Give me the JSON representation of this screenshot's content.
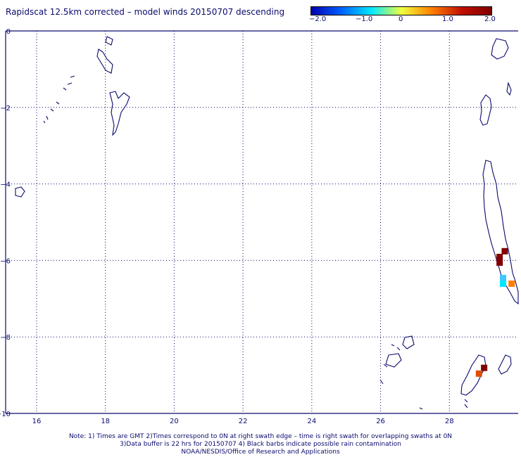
{
  "title": "Rapidscat 12.5km corrected – model winds 20150707 descending",
  "colorbar": {
    "labels": [
      "−2.0",
      "−1.0",
      "0",
      "1.0",
      "2.0"
    ],
    "colors": [
      "#0000b0",
      "#0060ff",
      "#00e8ff",
      "#f0ff40",
      "#ff8000",
      "#c01000",
      "#800000"
    ]
  },
  "map": {
    "x_labels": [
      "16",
      "18",
      "20",
      "22",
      "24",
      "26",
      "28"
    ],
    "y_labels": [
      "0",
      "−2",
      "−4",
      "−6",
      "−8",
      "−10"
    ],
    "coast_color": "#0a0a6e",
    "grid_color": "#0a0a6e"
  },
  "cells": [
    {
      "lon": 29.6,
      "lat": -5.75,
      "color": "#800000"
    },
    {
      "lon": 29.45,
      "lat": -5.9,
      "color": "#800000"
    },
    {
      "lon": 29.45,
      "lat": -6.05,
      "color": "#800000"
    },
    {
      "lon": 29.55,
      "lat": -6.45,
      "color": "#40c8ff"
    },
    {
      "lon": 29.55,
      "lat": -6.6,
      "color": "#00e8ff"
    },
    {
      "lon": 29.8,
      "lat": -6.6,
      "color": "#ff8000"
    },
    {
      "lon": 29.0,
      "lat": -8.8,
      "color": "#800000"
    },
    {
      "lon": 28.85,
      "lat": -8.95,
      "color": "#e05000"
    }
  ],
  "notes": [
    "Note: 1) Times are GMT 2)Times correspond to 0N at right swath edge – time is right swath for overlapping swaths at 0N",
    "3)Data buffer is 22 hrs for 20150707 4) Black barbs indicate possible rain contamination",
    "NOAA/NESDIS/Office of Research and Applications"
  ]
}
